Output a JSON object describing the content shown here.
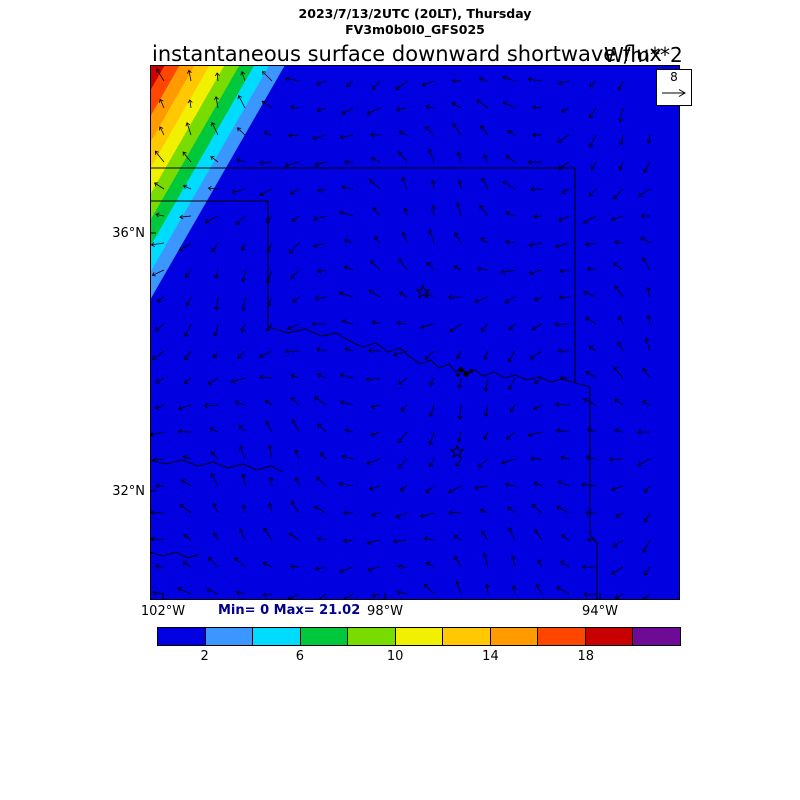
{
  "header": {
    "valid_time": "2023/7/13/2UTC (20LT), Thursday",
    "model": "FV3m0b0I0_GFS025"
  },
  "title": {
    "text": "instantaneous surface downward shortwave flux",
    "units": "W/m**2"
  },
  "stats_label": "Min= 0 Max= 21.02",
  "axes": {
    "lat_labels": [
      "36°N",
      "32°N"
    ],
    "lon_labels": [
      "102°W",
      "98°W",
      "94°W"
    ]
  },
  "wind_reference": {
    "value": "8"
  },
  "colorbar": {
    "segment_colors": [
      "#0000e0",
      "#3c96ff",
      "#00dcff",
      "#00c83c",
      "#78dc00",
      "#f0f000",
      "#ffc800",
      "#ff9b00",
      "#ff4600",
      "#c80000",
      "#6e0a96"
    ],
    "tick_values": [
      2,
      6,
      10,
      14,
      18
    ]
  },
  "map": {
    "bg_color": "#0000e0",
    "nw_gradient_colors": [
      "#c80000",
      "#ff4600",
      "#ff9b00",
      "#ffc800",
      "#f0f000",
      "#78dc00",
      "#00c83c",
      "#00dcff",
      "#3c96ff"
    ],
    "border_lines": [
      [
        [
          0,
          103
        ],
        [
          425,
          103
        ]
      ],
      [
        [
          0,
          136
        ],
        [
          118,
          136
        ]
      ],
      [
        [
          118,
          136
        ],
        [
          118,
          262
        ]
      ],
      [
        [
          425,
          103
        ],
        [
          425,
          318
        ]
      ],
      [
        [
          440,
          322
        ],
        [
          440,
          470
        ],
        [
          447,
          478
        ],
        [
          447,
          535
        ]
      ]
    ],
    "rivers": [
      [
        [
          118,
          262
        ],
        [
          138,
          268
        ],
        [
          155,
          264
        ],
        [
          172,
          271
        ],
        [
          186,
          268
        ],
        [
          200,
          276
        ],
        [
          212,
          282
        ],
        [
          226,
          278
        ],
        [
          238,
          287
        ],
        [
          250,
          283
        ],
        [
          260,
          292
        ],
        [
          270,
          299
        ],
        [
          281,
          295
        ],
        [
          289,
          303
        ],
        [
          299,
          299
        ],
        [
          306,
          307
        ],
        [
          311,
          302
        ],
        [
          317,
          309
        ],
        [
          325,
          305
        ],
        [
          333,
          311
        ],
        [
          344,
          307
        ],
        [
          355,
          313
        ],
        [
          365,
          310
        ],
        [
          377,
          315
        ],
        [
          389,
          312
        ],
        [
          401,
          317
        ],
        [
          412,
          314
        ],
        [
          425,
          318
        ],
        [
          433,
          320
        ],
        [
          440,
          322
        ]
      ],
      [
        [
          0,
          395
        ],
        [
          16,
          399
        ],
        [
          32,
          395
        ],
        [
          48,
          401
        ],
        [
          63,
          397
        ],
        [
          78,
          403
        ],
        [
          93,
          399
        ],
        [
          107,
          405
        ],
        [
          121,
          401
        ],
        [
          133,
          407
        ]
      ],
      [
        [
          0,
          487
        ],
        [
          13,
          491
        ],
        [
          26,
          487
        ],
        [
          38,
          493
        ],
        [
          50,
          489
        ]
      ]
    ],
    "stars": [
      [
        273,
        227
      ],
      [
        307,
        387
      ]
    ],
    "dots": [
      [
        311,
        305,
        2.5
      ],
      [
        316,
        309,
        2.8
      ],
      [
        321,
        306,
        2.0
      ],
      [
        308,
        310,
        1.8
      ]
    ],
    "axis_ticks": [
      [
        [
          0,
          168
        ],
        [
          6,
          168
        ]
      ],
      [
        [
          0,
          426
        ],
        [
          6,
          426
        ]
      ],
      [
        [
          13,
          535
        ],
        [
          13,
          528
        ]
      ],
      [
        [
          235,
          535
        ],
        [
          235,
          528
        ]
      ],
      [
        [
          450,
          535
        ],
        [
          450,
          528
        ]
      ]
    ],
    "quiver": {
      "spacing": 27,
      "base_length": 11
    }
  },
  "chart_data": {
    "type": "heatmap",
    "title": "instantaneous surface downward shortwave flux",
    "units": "W/m**2",
    "valid_time": "2023/7/13/2UTC (20LT), Thursday",
    "model_run": "FV3m0b0I0_GFS025",
    "stat_min": 0,
    "stat_max": 21.02,
    "colorbar_levels": [
      0,
      2,
      4,
      6,
      8,
      10,
      12,
      14,
      16,
      18,
      20,
      22
    ],
    "colorbar_tick_values": [
      2,
      6,
      10,
      14,
      18
    ],
    "colorbar_colors": [
      "#0000e0",
      "#3c96ff",
      "#00dcff",
      "#00c83c",
      "#78dc00",
      "#f0f000",
      "#ffc800",
      "#ff9b00",
      "#ff4600",
      "#c80000",
      "#6e0a96"
    ],
    "lat_tick_labels": [
      "36°N",
      "32°N"
    ],
    "lon_tick_labels": [
      "102°W",
      "98°W",
      "94°W"
    ],
    "wind_reference_value": 8,
    "legend_position": "bottom",
    "field_description": "Downward shortwave flux is ~0 W/m**2 (solid blue) over nearly the whole Oklahoma / North Texas domain; a narrow diagonal band of higher values up to ~21 W/m**2 (light blue through cyan, green, yellow, orange, red toward the corner) appears only in the far northwest corner; black wind vectors are overplotted on a regular grid with a reference arrow of 8 in the top-right box; two star markers and a small cluster of dots mark locations along and near the Red River."
  }
}
